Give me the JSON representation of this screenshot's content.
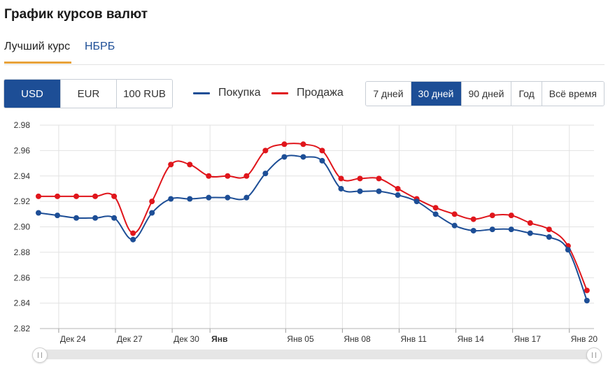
{
  "title": "График курсов валют",
  "tabs": [
    {
      "label": "Лучший курс",
      "active": true
    },
    {
      "label": "НБРБ",
      "active": false
    }
  ],
  "currencies": [
    {
      "label": "USD",
      "active": true
    },
    {
      "label": "EUR",
      "active": false
    },
    {
      "label": "100 RUB",
      "active": false
    }
  ],
  "periods": [
    {
      "label": "7 дней",
      "active": false
    },
    {
      "label": "30 дней",
      "active": true
    },
    {
      "label": "90 дней",
      "active": false
    },
    {
      "label": "Год",
      "active": false
    },
    {
      "label": "Всё время",
      "active": false
    }
  ],
  "colors": {
    "accent": "#1d4e96",
    "buy": "#1d4e96",
    "sell": "#e0161c",
    "tab_underline": "#e8a23a"
  },
  "chart_data": {
    "type": "line",
    "categories": [
      "23.12",
      "24.12",
      "25.12",
      "26.12",
      "27.12",
      "28.12",
      "29.12",
      "30.12",
      "31.12",
      "01.01",
      "02.01",
      "03.01",
      "04.01",
      "05.01",
      "06.01",
      "07.01",
      "08.01",
      "09.01",
      "10.01",
      "11.01",
      "12.01",
      "13.01",
      "14.01",
      "15.01",
      "16.01",
      "17.01",
      "18.01",
      "19.01",
      "20.01",
      "21.01"
    ],
    "x_ticks": [
      {
        "index": 1,
        "label": "Дек 24",
        "bold": false
      },
      {
        "index": 4,
        "label": "Дек 27",
        "bold": false
      },
      {
        "index": 7,
        "label": "Дек 30",
        "bold": false
      },
      {
        "index": 9,
        "label": "Янв",
        "bold": true
      },
      {
        "index": 13,
        "label": "Янв 05",
        "bold": false
      },
      {
        "index": 16,
        "label": "Янв 08",
        "bold": false
      },
      {
        "index": 19,
        "label": "Янв 11",
        "bold": false
      },
      {
        "index": 22,
        "label": "Янв 14",
        "bold": false
      },
      {
        "index": 25,
        "label": "Янв 17",
        "bold": false
      },
      {
        "index": 28,
        "label": "Янв 20",
        "bold": false
      }
    ],
    "y_ticks": [
      "2.82",
      "2.84",
      "2.86",
      "2.88",
      "2.90",
      "2.92",
      "2.94",
      "2.96",
      "2.98"
    ],
    "ylim": [
      2.82,
      2.98
    ],
    "grid": true,
    "series": [
      {
        "name": "Покупка",
        "color": "#1d4e96",
        "values": [
          2.911,
          2.909,
          2.907,
          2.907,
          2.907,
          2.89,
          2.911,
          2.922,
          2.922,
          2.923,
          2.923,
          2.923,
          2.942,
          2.955,
          2.955,
          2.952,
          2.93,
          2.928,
          2.928,
          2.925,
          2.92,
          2.91,
          2.901,
          2.897,
          2.898,
          2.898,
          2.895,
          2.892,
          2.882,
          2.842
        ]
      },
      {
        "name": "Продажа",
        "color": "#e0161c",
        "values": [
          2.924,
          2.924,
          2.924,
          2.924,
          2.924,
          2.895,
          2.92,
          2.949,
          2.949,
          2.94,
          2.94,
          2.94,
          2.96,
          2.965,
          2.965,
          2.96,
          2.938,
          2.938,
          2.938,
          2.93,
          2.922,
          2.915,
          2.91,
          2.906,
          2.909,
          2.909,
          2.903,
          2.898,
          2.885,
          2.85
        ]
      }
    ]
  }
}
